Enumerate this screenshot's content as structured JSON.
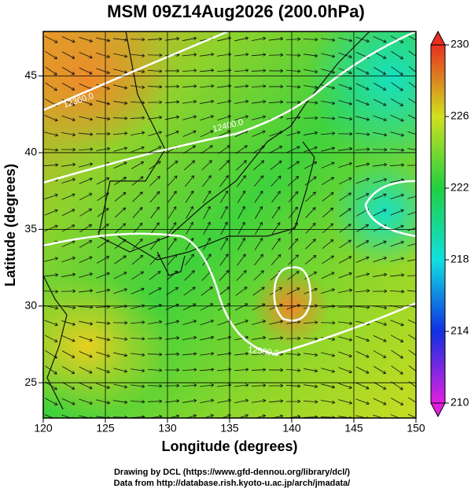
{
  "chart_data": {
    "type": "map",
    "title": "MSM 09Z14Aug2026 (200.0hPa)",
    "x_label": "Longitude (degrees)",
    "y_label": "Latitude  (degrees)",
    "xlim": [
      120,
      150
    ],
    "xticks": [
      120,
      125,
      130,
      135,
      140,
      145,
      150
    ],
    "ylim": [
      22.7,
      47.9
    ],
    "yticks": [
      25,
      30,
      35,
      40,
      45
    ],
    "grid": true,
    "contour_labels": [
      "12360.0",
      "12400.0",
      "12500.0"
    ],
    "colorbar": {
      "lim": [
        210,
        230
      ],
      "ticks": [
        210,
        214,
        218,
        222,
        226,
        230
      ]
    },
    "footer": [
      "Drawing by DCL (https://www.gfd-dennou.org/library/dcl/)",
      "Data from http://database.rish.kyoto-u.ac.jp/arch/jmadata/"
    ]
  }
}
